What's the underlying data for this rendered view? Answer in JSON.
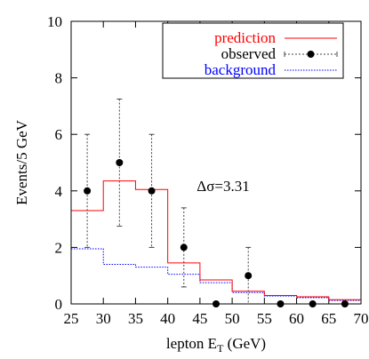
{
  "chart_data": {
    "type": "step",
    "xlabel_main": "lepton E",
    "xlabel_sub": "T",
    "xlabel_unit": " (GeV)",
    "ylabel": "Events/5 GeV",
    "xlim": [
      25,
      70
    ],
    "ylim": [
      0,
      10
    ],
    "xticks": [
      25,
      30,
      35,
      40,
      45,
      50,
      55,
      60,
      65,
      70
    ],
    "yticks": [
      0,
      2,
      4,
      6,
      8,
      10
    ],
    "annotation": "Δσ=3.31",
    "legend": [
      {
        "label": "prediction",
        "color": "#ff0000",
        "style": "line"
      },
      {
        "label": "observed",
        "color": "#000000",
        "style": "point"
      },
      {
        "label": "background",
        "color": "#0000ff",
        "style": "dotted"
      }
    ],
    "bin_edges": [
      25,
      30,
      35,
      40,
      45,
      50,
      55,
      60,
      65,
      70
    ],
    "series": [
      {
        "name": "prediction",
        "color": "#ff0000",
        "values": [
          3.3,
          4.35,
          4.05,
          1.45,
          0.85,
          0.45,
          0.3,
          0.25,
          0.15
        ]
      },
      {
        "name": "background",
        "color": "#0000ff",
        "values": [
          1.95,
          1.4,
          1.3,
          1.05,
          0.75,
          0.4,
          0.28,
          0.22,
          0.12
        ]
      }
    ],
    "observed": {
      "name": "observed",
      "x": [
        27.5,
        32.5,
        37.5,
        42.5,
        47.5,
        52.5,
        57.5,
        62.5,
        67.5
      ],
      "y": [
        4,
        5,
        4,
        2,
        0,
        1,
        0,
        0,
        0
      ],
      "err_low": [
        2.0,
        2.25,
        2.0,
        1.4,
        0,
        1.0,
        0,
        0,
        0
      ],
      "err_high": [
        2.0,
        2.25,
        2.0,
        1.4,
        0,
        1.0,
        0,
        0,
        0
      ]
    }
  }
}
